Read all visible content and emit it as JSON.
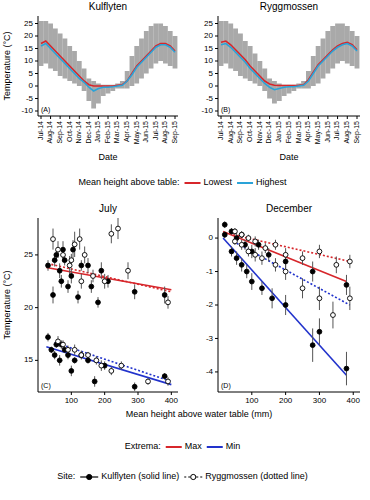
{
  "chart_data": [
    {
      "type": "line",
      "title": "Kulflyten",
      "annotation": "(A)",
      "xlabel": "Date",
      "ylabel": "Temperature (°C)",
      "categories": [
        "Jul-14",
        null,
        "Aug-14",
        null,
        "Sep-14",
        null,
        "Oct-14",
        null,
        "Nov-14",
        null,
        "Dec-14",
        null,
        "Jan-15",
        null,
        "Feb-15",
        null,
        "Mar-15",
        null,
        "Apr-15",
        null,
        "May-15",
        null,
        "Jun-15",
        null,
        "Jul-15",
        null,
        "Aug-15",
        null,
        "Sep-15"
      ],
      "ylim": [
        -12,
        28
      ],
      "yticks": [
        -10,
        -5,
        0,
        5,
        10,
        15,
        20,
        25
      ],
      "legend_title": "Mean height above table:",
      "series": [
        {
          "name": "Lowest",
          "color": "#d7262b",
          "values": [
            17,
            18,
            16,
            14,
            12,
            10,
            8,
            6,
            4,
            2,
            0.5,
            0,
            0,
            0,
            0,
            0,
            0.3,
            0.5,
            2,
            5,
            8,
            10,
            12,
            14,
            16,
            17,
            17,
            16,
            14
          ],
          "daily_min": [
            8,
            9,
            7,
            6,
            4,
            3,
            2,
            1,
            0,
            -2,
            -6,
            -9,
            -7,
            -4,
            -3,
            -2,
            -1,
            -1,
            -1,
            0,
            1,
            3,
            5,
            7,
            9,
            10,
            9,
            8,
            7
          ],
          "daily_max": [
            26,
            26,
            25,
            23,
            21,
            19,
            16,
            14,
            10,
            7,
            3,
            2,
            1,
            0.5,
            0.5,
            0.5,
            1,
            2,
            6,
            12,
            16,
            19,
            22,
            24,
            25,
            25,
            24,
            22,
            20
          ]
        },
        {
          "name": "Highest",
          "color": "#2aa3d8",
          "values": [
            16,
            17,
            15,
            13,
            11,
            9,
            7,
            5,
            3,
            1.5,
            -0.5,
            -2,
            -1,
            -0.5,
            -0.5,
            -0.3,
            0,
            0.3,
            2,
            4.5,
            7.5,
            9.5,
            11.5,
            13.5,
            15.5,
            16.5,
            16.5,
            15.5,
            13.5
          ]
        }
      ]
    },
    {
      "type": "line",
      "title": "Ryggmossen",
      "annotation": "(B)",
      "xlabel": "Date",
      "categories": [
        "Jul-14",
        null,
        "Aug-14",
        null,
        "Sep-14",
        null,
        "Oct-14",
        null,
        "Nov-14",
        null,
        "Dec-14",
        null,
        "Jan-15",
        null,
        "Feb-15",
        null,
        "Mar-15",
        null,
        "Apr-15",
        null,
        "May-15",
        null,
        "Jun-15",
        null,
        "Jul-15",
        null,
        "Aug-15",
        null,
        "Sep-15"
      ],
      "ylim": [
        -12,
        28
      ],
      "yticks": [
        -10,
        -5,
        0,
        5,
        10,
        15,
        20,
        25
      ],
      "series": [
        {
          "color": "#d7262b",
          "values": [
            17.5,
            18,
            16.5,
            14.5,
            12.5,
            10.5,
            8,
            6,
            4,
            2,
            0.8,
            0.3,
            0.2,
            0.2,
            0.2,
            0.2,
            0.3,
            0.5,
            2.5,
            5.5,
            8.5,
            10.5,
            12.5,
            14.5,
            16,
            17,
            17.5,
            16.5,
            14.5
          ],
          "daily_min": [
            8,
            9,
            7,
            6,
            4,
            3,
            2,
            1,
            0,
            -2,
            -5,
            -7,
            -6,
            -4,
            -3,
            -2,
            -1,
            -1,
            -1,
            0,
            1,
            3,
            5,
            7,
            9,
            10,
            9,
            8,
            7
          ],
          "daily_max": [
            26,
            26,
            25,
            23,
            21,
            18,
            16,
            13,
            10,
            7,
            3,
            2,
            1,
            0.5,
            0.5,
            0.5,
            1,
            2,
            6,
            12,
            16,
            19,
            22,
            24,
            25,
            25,
            24,
            22,
            20
          ]
        },
        {
          "color": "#2aa3d8",
          "values": [
            16.5,
            17,
            15.5,
            13.5,
            11.5,
            9.5,
            7,
            5,
            3,
            1,
            -0.5,
            -1.5,
            -1,
            -0.5,
            -0.3,
            -0.3,
            0,
            0.3,
            2,
            5,
            8,
            10,
            12,
            14,
            15.5,
            16.5,
            17,
            16,
            14
          ]
        }
      ]
    },
    {
      "type": "scatter",
      "title": "July",
      "annotation": "(C)",
      "xlabel": "Mean height above water table (mm)",
      "ylabel": "Temperature (°C)",
      "xlim": [
        0,
        420
      ],
      "xticks": [
        100,
        200,
        300,
        400
      ],
      "ylim": [
        12,
        28.5
      ],
      "yticks": [
        15,
        20,
        25
      ],
      "legend_title": "Extrema:",
      "site_title": "Site:",
      "sites": [
        {
          "label": "Kulflyten (solid line)",
          "marker": "circle",
          "line_style": "solid"
        },
        {
          "label": "Ryggmossen (dotted line)",
          "marker": "open_circle",
          "line_style": "dotted"
        }
      ],
      "series": [
        {
          "name": "Max",
          "color": "#d7262b",
          "marker": "circle",
          "line_style": "solid",
          "x": [
            30,
            45,
            50,
            55,
            65,
            70,
            75,
            80,
            90,
            100,
            105,
            120,
            130,
            150,
            160,
            180,
            190,
            210,
            290,
            380
          ],
          "values": [
            24.0,
            21.2,
            24.5,
            25.0,
            23.5,
            22.5,
            25.5,
            24.5,
            22.0,
            23.0,
            25.5,
            21.0,
            24.0,
            24.0,
            22.0,
            20.5,
            23.5,
            22.5,
            21.5,
            21.2
          ],
          "errors": [
            0.5,
            0.8,
            0.6,
            0.5,
            0.7,
            0.6,
            0.8,
            0.5,
            0.6,
            0.7,
            0.9,
            0.6,
            0.5,
            0.7,
            0.6,
            0.5,
            0.8,
            0.6,
            0.7,
            0.8
          ],
          "fit_x": [
            25,
            400
          ],
          "fit_y": [
            23.8,
            21.7
          ]
        },
        {
          "color": "#d7262b",
          "marker": "open_circle",
          "line_style": "dotted",
          "x": [
            45,
            60,
            75,
            95,
            100,
            110,
            125,
            130,
            140,
            165,
            200,
            220,
            240,
            270,
            390
          ],
          "values": [
            26.5,
            25.5,
            25.0,
            24.0,
            24.5,
            26.0,
            26.5,
            22.5,
            25.0,
            23.0,
            22.5,
            27.0,
            27.5,
            23.5,
            20.5
          ],
          "errors": [
            1.0,
            0.8,
            0.7,
            0.9,
            0.6,
            1.2,
            1.0,
            0.7,
            0.8,
            0.6,
            0.7,
            0.9,
            1.0,
            0.8,
            0.6
          ],
          "fit_x": [
            40,
            400
          ],
          "fit_y": [
            24.1,
            21.5
          ]
        },
        {
          "name": "Min",
          "color": "#2233cc",
          "marker": "circle",
          "line_style": "solid",
          "x": [
            30,
            40,
            50,
            55,
            65,
            70,
            80,
            90,
            100,
            110,
            130,
            150,
            170,
            200,
            290,
            380
          ],
          "values": [
            17.2,
            16.0,
            15.5,
            16.5,
            15.0,
            16.5,
            16.0,
            15.5,
            14.0,
            15.0,
            15.5,
            15.0,
            13.0,
            14.5,
            12.5,
            13.5
          ],
          "errors": [
            0.4,
            0.3,
            0.4,
            0.3,
            0.5,
            0.4,
            0.3,
            0.4,
            0.5,
            0.3,
            0.4,
            0.3,
            0.5,
            0.4,
            0.4,
            0.3
          ],
          "fit_x": [
            25,
            400
          ],
          "fit_y": [
            16.3,
            12.7
          ]
        },
        {
          "color": "#2233cc",
          "marker": "open_circle",
          "line_style": "dotted",
          "x": [
            60,
            75,
            90,
            110,
            130,
            150,
            175,
            190,
            220,
            250,
            330,
            390
          ],
          "values": [
            16.8,
            16.5,
            16.0,
            16.0,
            15.5,
            15.5,
            15.0,
            14.5,
            14.0,
            14.5,
            13.0,
            13.0
          ],
          "errors": [
            0.5,
            0.4,
            0.4,
            0.5,
            0.4,
            0.3,
            0.4,
            0.5,
            0.4,
            0.4,
            0.3,
            0.4
          ],
          "fit_x": [
            50,
            400
          ],
          "fit_y": [
            16.7,
            13.0
          ]
        }
      ]
    },
    {
      "type": "scatter",
      "title": "December",
      "annotation": "(D)",
      "xlim": [
        0,
        420
      ],
      "xticks": [
        100,
        200,
        300,
        400
      ],
      "ylim": [
        -4.6,
        0.6
      ],
      "yticks": [
        -4,
        -3,
        -2,
        -1,
        0
      ],
      "series": [
        {
          "color": "#d7262b",
          "marker": "circle",
          "line_style": "solid",
          "x": [
            20,
            40,
            55,
            70,
            80,
            100,
            120,
            150,
            200,
            280,
            380
          ],
          "values": [
            0.4,
            0.2,
            0.0,
            0.1,
            -0.2,
            -0.4,
            -0.2,
            -0.5,
            -0.7,
            -1.0,
            -1.4
          ],
          "errors": [
            0.1,
            0.1,
            0.15,
            0.1,
            0.15,
            0.2,
            0.15,
            0.2,
            0.2,
            0.3,
            0.3
          ],
          "fit_x": [
            15,
            380
          ],
          "fit_y": [
            0.2,
            -1.3
          ]
        },
        {
          "color": "#2233cc",
          "marker": "circle",
          "line_style": "solid",
          "x": [
            20,
            40,
            55,
            70,
            85,
            100,
            130,
            160,
            200,
            280,
            300,
            380
          ],
          "values": [
            0.1,
            -0.4,
            -0.6,
            -0.8,
            -1.0,
            -1.3,
            -1.5,
            -1.8,
            -2.0,
            -3.2,
            -2.8,
            -3.9
          ],
          "errors": [
            0.1,
            0.15,
            0.2,
            0.2,
            0.2,
            0.25,
            0.2,
            0.3,
            0.3,
            0.5,
            0.4,
            0.5
          ],
          "fit_x": [
            15,
            380
          ],
          "fit_y": [
            0.0,
            -4.1
          ]
        },
        {
          "color": "#d7262b",
          "marker": "open_circle",
          "line_style": "dotted",
          "x": [
            50,
            70,
            90,
            110,
            140,
            170,
            200,
            250,
            300,
            350,
            390
          ],
          "values": [
            0.2,
            0.1,
            0.0,
            -0.1,
            -0.3,
            -0.2,
            -0.5,
            -0.6,
            -0.4,
            -0.8,
            -0.7
          ],
          "errors": [
            0.1,
            0.1,
            0.1,
            0.15,
            0.15,
            0.15,
            0.2,
            0.2,
            0.2,
            0.25,
            0.2
          ],
          "fit_x": [
            45,
            390
          ],
          "fit_y": [
            0.1,
            -0.7
          ]
        },
        {
          "color": "#2233cc",
          "marker": "open_circle",
          "line_style": "dotted",
          "x": [
            50,
            70,
            90,
            110,
            130,
            170,
            200,
            250,
            300,
            340,
            390
          ],
          "values": [
            -0.1,
            -0.2,
            -0.4,
            -0.5,
            -0.6,
            -0.8,
            -1.0,
            -1.5,
            -1.8,
            -2.3,
            -1.8
          ],
          "errors": [
            0.1,
            0.15,
            0.15,
            0.2,
            0.2,
            0.2,
            0.25,
            0.3,
            0.35,
            0.4,
            0.35
          ],
          "fit_x": [
            45,
            390
          ],
          "fit_y": [
            -0.1,
            -2.0
          ]
        }
      ]
    }
  ]
}
